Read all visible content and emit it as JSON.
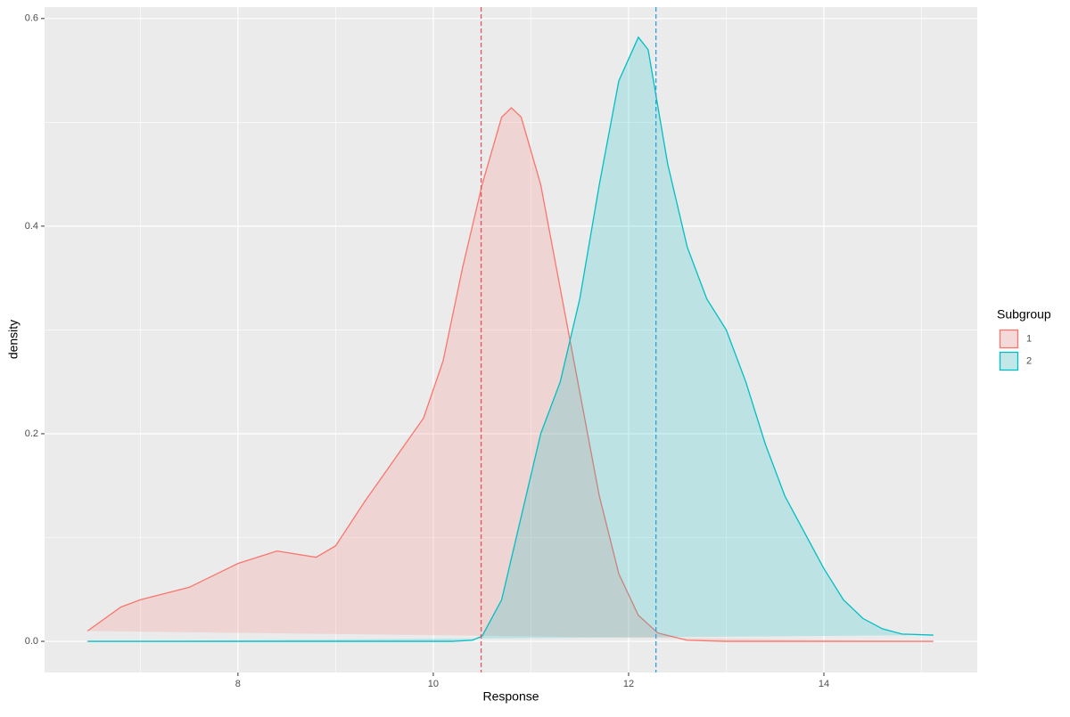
{
  "chart_data": {
    "type": "density",
    "xlabel": "Response",
    "ylabel": "density",
    "xlim": [
      6.02,
      15.57
    ],
    "ylim": [
      -0.03,
      0.611
    ],
    "xticks": [
      8,
      10,
      12,
      14
    ],
    "yticks": [
      {
        "value": 0,
        "label": "0.0"
      },
      0.2,
      0.4,
      0.6
    ],
    "grid": true,
    "legend_title": "Subgroup",
    "legend_position": "right",
    "series": [
      {
        "name": "1",
        "color": "#F8766D",
        "mean": 10.49,
        "mean_color": "#E8535F",
        "x": [
          6.46,
          6.8,
          7.0,
          7.5,
          8.0,
          8.4,
          8.8,
          9.0,
          9.3,
          9.6,
          9.9,
          10.1,
          10.3,
          10.5,
          10.7,
          10.8,
          10.9,
          11.1,
          11.3,
          11.5,
          11.7,
          11.9,
          12.1,
          12.3,
          12.6,
          13.0,
          14.0,
          15.12
        ],
        "values": [
          0.01,
          0.033,
          0.04,
          0.052,
          0.075,
          0.087,
          0.081,
          0.092,
          0.135,
          0.175,
          0.215,
          0.27,
          0.36,
          0.44,
          0.505,
          0.514,
          0.505,
          0.44,
          0.34,
          0.24,
          0.14,
          0.065,
          0.025,
          0.008,
          0.001,
          0,
          0,
          0
        ]
      },
      {
        "name": "2",
        "color": "#00BFC4",
        "mean": 12.28,
        "mean_color": "#2E9FDF",
        "x": [
          6.46,
          10.2,
          10.4,
          10.5,
          10.7,
          10.9,
          11.1,
          11.3,
          11.5,
          11.7,
          11.9,
          12.1,
          12.2,
          12.4,
          12.6,
          12.8,
          13.0,
          13.2,
          13.4,
          13.6,
          13.8,
          14.0,
          14.2,
          14.4,
          14.6,
          14.8,
          15.12
        ],
        "values": [
          0,
          0,
          0.001,
          0.005,
          0.04,
          0.12,
          0.2,
          0.25,
          0.33,
          0.44,
          0.54,
          0.582,
          0.57,
          0.46,
          0.38,
          0.33,
          0.3,
          0.25,
          0.19,
          0.14,
          0.105,
          0.07,
          0.04,
          0.022,
          0.012,
          0.007,
          0.006
        ]
      }
    ]
  }
}
